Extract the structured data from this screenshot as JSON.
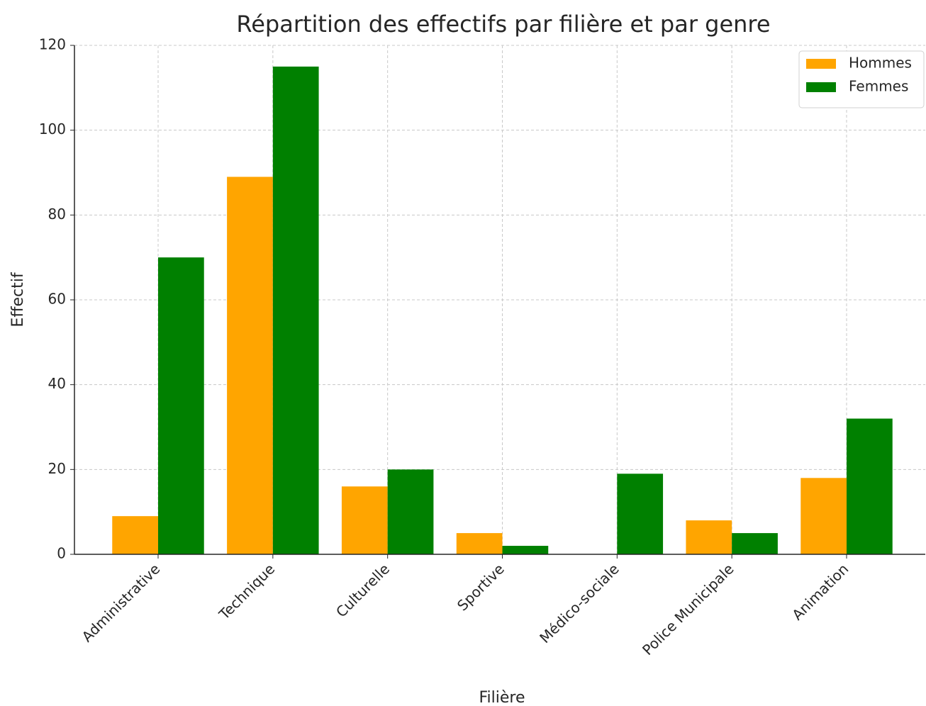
{
  "chart_data": {
    "type": "bar",
    "title": "Répartition des effectifs par filière et par genre",
    "x_label": "Filière",
    "y_label": "Effectif",
    "categories": [
      "Administrative",
      "Technique",
      "Culturelle",
      "Sportive",
      "Médico-sociale",
      "Police Municipale",
      "Animation"
    ],
    "series": [
      {
        "name": "Hommes",
        "color": "#ffa500",
        "values": [
          9,
          89,
          16,
          5,
          0,
          8,
          18
        ]
      },
      {
        "name": "Femmes",
        "color": "#008000",
        "values": [
          70,
          115,
          20,
          2,
          19,
          5,
          32
        ]
      }
    ],
    "ylim": [
      0,
      120
    ],
    "yticks": [
      0,
      20,
      40,
      60,
      80,
      100,
      120
    ],
    "grid": true,
    "legend": "upper right"
  }
}
